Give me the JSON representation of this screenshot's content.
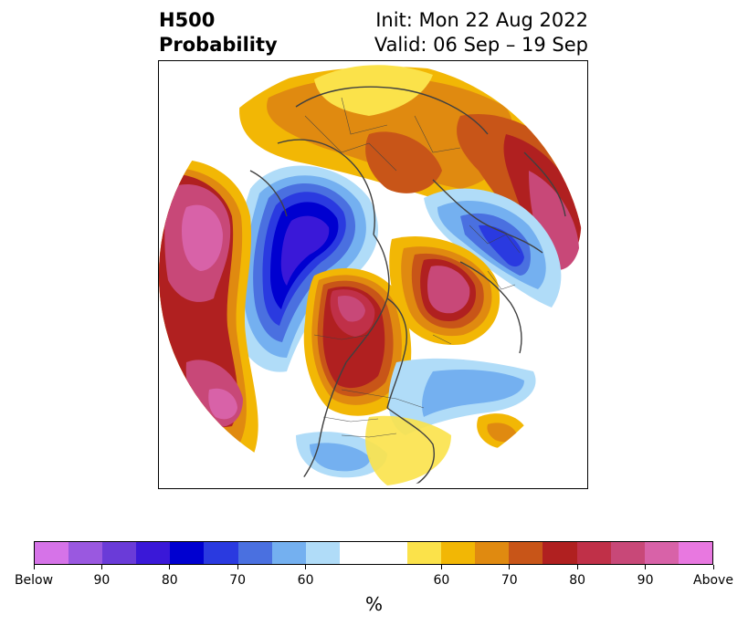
{
  "title": {
    "left_line1": "H500",
    "left_line2": "Probability",
    "right_line1": "Init: Mon 22 Aug 2022",
    "right_line2": "Valid: 06 Sep – 19 Sep"
  },
  "colorbar": {
    "unit_label": "%",
    "ticks": [
      "Below",
      "90",
      "80",
      "70",
      "60",
      "60",
      "70",
      "80",
      "90",
      "Above"
    ],
    "below_colors": [
      "#d673e8",
      "#9a58e0",
      "#6a3bd8",
      "#3a18d8",
      "#0000d0",
      "#2a3ae0",
      "#4a70e0",
      "#74b0f0",
      "#b0dcf8"
    ],
    "neutral_color": "#ffffff",
    "above_colors": [
      "#fbe24a",
      "#f2b705",
      "#e08a10",
      "#c85518",
      "#b02020",
      "#c03048",
      "#c84878",
      "#d862a8",
      "#e878e0"
    ]
  },
  "map": {
    "projection": "polar-stereographic-north",
    "coastline_color": "#404040"
  }
}
